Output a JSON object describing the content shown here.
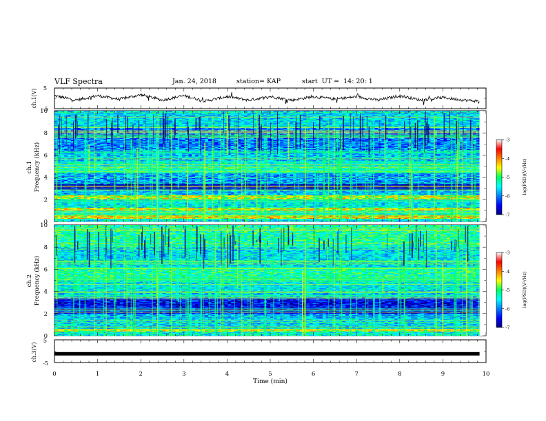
{
  "header": {
    "title": "VLF Spectra",
    "date": "Jan. 24, 2018",
    "station": "station= KAP",
    "start": "start  UT =  14: 20: 1"
  },
  "chart_data": [
    {
      "type": "line",
      "panel": "ch1-waveform",
      "ylabel": "ch.1(V)",
      "ylim": [
        -5,
        5
      ],
      "yticks": [
        "5",
        "-5"
      ],
      "xlim": [
        0,
        10
      ],
      "x_end": 9.85,
      "color": "#000000",
      "approx_series": {
        "x": [
          0,
          0.5,
          1,
          1.5,
          2,
          2.5,
          3,
          3.5,
          4,
          4.5,
          5,
          5.5,
          6,
          6.5,
          7,
          7.5,
          8,
          8.5,
          9,
          9.5,
          9.85
        ],
        "y": [
          1.5,
          -1,
          1.5,
          -0.5,
          2,
          -1,
          1.5,
          -1.5,
          1,
          -1,
          1,
          -1,
          1,
          -0.5,
          1,
          -1,
          1.5,
          -1,
          0.5,
          -1,
          -1.5
        ]
      }
    },
    {
      "type": "heatmap",
      "panel": "ch1-spectrogram",
      "ylabel": "ch.1\nFrequency (kHz)",
      "ylim": [
        0,
        10
      ],
      "yticks": [
        "0",
        "2",
        "4",
        "6",
        "8",
        "10"
      ],
      "xlim": [
        0,
        10
      ],
      "x_end": 9.85,
      "colorbar": {
        "label": "log(PSD)(V²/Hz)",
        "range": [
          -7,
          -3
        ],
        "ticks": [
          "-3",
          "-4",
          "-5",
          "-6",
          "-7"
        ]
      },
      "bands_khz": [
        {
          "lo": 0.0,
          "hi": 0.3,
          "level": -5.5
        },
        {
          "lo": 0.3,
          "hi": 0.6,
          "level": -4.4
        },
        {
          "lo": 0.6,
          "hi": 1.0,
          "level": -5.3
        },
        {
          "lo": 1.0,
          "hi": 1.3,
          "level": -4.5
        },
        {
          "lo": 1.3,
          "hi": 2.0,
          "level": -5.5
        },
        {
          "lo": 2.0,
          "hi": 2.4,
          "level": -4.6
        },
        {
          "lo": 2.4,
          "hi": 2.9,
          "level": -5.7
        },
        {
          "lo": 2.9,
          "hi": 3.4,
          "level": -6.7
        },
        {
          "lo": 3.4,
          "hi": 4.4,
          "level": -5.9
        },
        {
          "lo": 4.4,
          "hi": 5.0,
          "level": -5.2
        },
        {
          "lo": 5.0,
          "hi": 5.5,
          "level": -5.4
        },
        {
          "lo": 5.5,
          "hi": 6.5,
          "level": -5.7
        },
        {
          "lo": 6.5,
          "hi": 8.5,
          "level": -6.0
        },
        {
          "lo": 8.5,
          "hi": 10.0,
          "level": -5.6
        }
      ]
    },
    {
      "type": "heatmap",
      "panel": "ch2-spectrogram",
      "ylabel": "ch.2\nFrequency (kHz)",
      "ylim": [
        0,
        10
      ],
      "yticks": [
        "0",
        "2",
        "4",
        "6",
        "8",
        "10"
      ],
      "xlim": [
        0,
        10
      ],
      "x_end": 9.85,
      "colorbar": {
        "label": "log(PSD)(V²/Hz)",
        "range": [
          -7,
          -3
        ],
        "ticks": [
          "-3",
          "-4",
          "-5",
          "-6",
          "-7"
        ]
      },
      "bands_khz": [
        {
          "lo": 0.0,
          "hi": 0.4,
          "level": -5.4
        },
        {
          "lo": 0.4,
          "hi": 0.6,
          "level": -4.6
        },
        {
          "lo": 0.6,
          "hi": 1.6,
          "level": -5.6
        },
        {
          "lo": 1.6,
          "hi": 2.0,
          "level": -5.8
        },
        {
          "lo": 2.0,
          "hi": 3.4,
          "level": -6.5
        },
        {
          "lo": 3.4,
          "hi": 4.0,
          "level": -5.6
        },
        {
          "lo": 4.0,
          "hi": 5.0,
          "level": -5.5
        },
        {
          "lo": 5.0,
          "hi": 6.2,
          "level": -5.2
        },
        {
          "lo": 6.2,
          "hi": 8.0,
          "level": -5.6
        },
        {
          "lo": 8.0,
          "hi": 10.0,
          "level": -5.2
        }
      ]
    },
    {
      "type": "line",
      "panel": "ch3-waveform",
      "ylabel": "ch.3(V)",
      "ylim": [
        -5,
        5
      ],
      "yticks": [
        "5",
        "-5"
      ],
      "xlim": [
        0,
        10
      ],
      "x_end": 9.85,
      "constant_value": -1.3,
      "color": "#000000"
    }
  ],
  "xaxis": {
    "label": "Time (min)",
    "ticks": [
      "0",
      "1",
      "2",
      "3",
      "4",
      "5",
      "6",
      "7",
      "8",
      "9",
      "10"
    ]
  }
}
